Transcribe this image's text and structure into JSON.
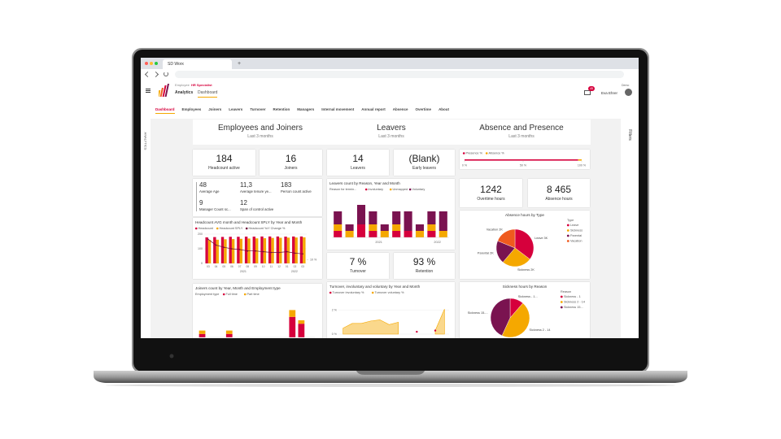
{
  "browser": {
    "tab_title": "SD Worx",
    "new_tab": "+"
  },
  "header": {
    "role_label": "Employee",
    "role": "HR Specialist",
    "nav": [
      "Analytics",
      "Dashboard"
    ],
    "notifications": "45",
    "environment": "Demo",
    "user": "Eva Ehrer"
  },
  "tabs": [
    "Dashboard",
    "Employees",
    "Joiners",
    "Leavers",
    "Turnover",
    "Retention",
    "Managers",
    "Internal movement",
    "Annual report",
    "Absence",
    "Overtime",
    "About"
  ],
  "sidebar": {
    "left": "ANALYTICS",
    "right": "Filters"
  },
  "sections": [
    {
      "title": "Employees and Joiners",
      "subtitle": "Last 3 months"
    },
    {
      "title": "Leavers",
      "subtitle": "Last 3 months"
    },
    {
      "title": "Absence and Presence",
      "subtitle": "Last 3 months"
    }
  ],
  "kpis": [
    {
      "value": "184",
      "label": "Headcount active"
    },
    {
      "value": "16",
      "label": "Joiners"
    },
    {
      "value": "14",
      "label": "Leavers"
    },
    {
      "value": "(Blank)",
      "label": "Early leavers"
    },
    {
      "value": "1242",
      "label": "Overtime hours"
    },
    {
      "value": "8 465",
      "label": "Absence hours"
    },
    {
      "value": "7 %",
      "label": "Turnover"
    },
    {
      "value": "93 %",
      "label": "Retention"
    }
  ],
  "stats": [
    {
      "value": "48",
      "label": "Average Age"
    },
    {
      "value": "11,3",
      "label": "Average tenure ye..."
    },
    {
      "value": "183",
      "label": "Person count active"
    },
    {
      "value": "9",
      "label": "Manager Count sc..."
    },
    {
      "value": "12",
      "label": "Span of control active"
    }
  ],
  "charts": {
    "presence": {
      "type": "stacked-hbar",
      "series": [
        {
          "name": "Presence %",
          "color": "#d6003c",
          "values": [
            97
          ]
        },
        {
          "name": "Absence %",
          "color": "#f5a800",
          "values": [
            3
          ]
        }
      ],
      "xlim": [
        0,
        100
      ],
      "xticks": [
        {
          "value": 0,
          "label": "0 %"
        },
        {
          "value": 50,
          "label": "50 %"
        },
        {
          "value": 100,
          "label": "100 %"
        }
      ]
    },
    "leavers": {
      "type": "stacked-bar",
      "title": "Leavers count by Reason, Year and Month",
      "legend_title": "Reason for termin...",
      "categories": [
        null,
        null,
        null,
        null,
        null,
        null,
        null,
        null,
        null,
        null
      ],
      "series": [
        {
          "name": "Involuntary",
          "color": "#d6003c",
          "values": [
            1,
            0,
            2,
            1,
            0,
            1,
            1,
            0,
            1,
            0
          ]
        },
        {
          "name": "Unmapped",
          "color": "#f5a800",
          "values": [
            1,
            1,
            0,
            1,
            1,
            1,
            0,
            1,
            1,
            1
          ]
        },
        {
          "name": "Voluntary",
          "color": "#7a1350",
          "values": [
            2,
            1,
            3,
            2,
            1,
            2,
            3,
            1,
            2,
            3
          ]
        }
      ],
      "ylim": [
        0,
        6
      ],
      "x_group_labels": [
        "2021",
        "2022"
      ]
    },
    "headcount": {
      "type": "bar-line",
      "title": "Headcount AVG month and Headcount SPLY by Year and Month",
      "categories": [
        "03",
        "04",
        "05",
        "06",
        "07",
        "08",
        "09",
        "10",
        "11",
        "12",
        "01",
        "02",
        "03"
      ],
      "series": [
        {
          "name": "Headcount",
          "color": "#d6003c",
          "values": [
            178,
            180,
            181,
            182,
            182,
            183,
            183,
            184,
            184,
            184,
            183,
            184,
            184
          ]
        },
        {
          "name": "Headcount SPLY",
          "color": "#f5a800",
          "values": [
            160,
            162,
            165,
            166,
            168,
            170,
            171,
            172,
            174,
            175,
            176,
            177,
            178
          ]
        },
        {
          "name": "Headcount YoY Change %",
          "color": "#6e0b3a",
          "axis": "y2",
          "values": [
            38,
            30,
            27,
            25,
            24,
            22,
            22,
            21,
            20,
            20,
            21,
            19,
            18
          ]
        }
      ],
      "ylim": [
        0,
        200
      ],
      "yticks": [
        0,
        100,
        200
      ],
      "y2lim": [
        5,
        45
      ],
      "y2ticks": [
        {
          "value": 10,
          "label": "10 %"
        }
      ],
      "x_group_labels": [
        "2021",
        "2022"
      ]
    },
    "joiners": {
      "type": "stacked-bar",
      "title": "Joiners count by Year, Month and Employment type",
      "legend_title": "Employment type",
      "categories": [
        null,
        null,
        null,
        null,
        null,
        null,
        null,
        null,
        null,
        null,
        null,
        null,
        null
      ],
      "series": [
        {
          "name": "Full time",
          "color": "#d6003c",
          "values": [
            1,
            0,
            0,
            1,
            0,
            0,
            0,
            0,
            0,
            0,
            6,
            4,
            0
          ]
        },
        {
          "name": "Part time",
          "color": "#f5a800",
          "values": [
            1,
            0,
            0,
            1,
            0,
            0,
            0,
            0,
            0,
            0,
            2,
            1,
            0
          ]
        }
      ],
      "ylim": [
        0,
        10
      ]
    },
    "turnover": {
      "type": "area",
      "title": "Turnover, involuntary and voluntary by Year and Month",
      "categories": [
        null,
        null,
        null,
        null,
        null,
        null,
        null,
        null,
        null,
        null,
        null,
        null
      ],
      "series": [
        {
          "name": "Turnover involuntary %",
          "color": "#d6003c",
          "values": [
            null,
            null,
            null,
            null,
            null,
            null,
            null,
            null,
            0.2,
            null,
            0.3,
            null
          ]
        },
        {
          "name": "Turnover voluntary %",
          "color": "#f5a800",
          "values": [
            0.5,
            0.9,
            0.9,
            1.1,
            1.2,
            0.8,
            1.0,
            null,
            null,
            null,
            0.3,
            2.1
          ]
        }
      ],
      "ylim": [
        0,
        3
      ],
      "yticks": [
        {
          "value": 2,
          "label": "2 %"
        },
        {
          "value": 0,
          "label": "0 %"
        }
      ]
    },
    "absence": {
      "type": "pie",
      "title": "Absence hours by Type",
      "legend_title": "Type",
      "slices": [
        {
          "name": "Leave",
          "value": 3000,
          "label": "Leave 3K",
          "color": "#d6003c"
        },
        {
          "name": "Sickness",
          "value": 2200,
          "label": "Sickness 2K",
          "color": "#f5a800"
        },
        {
          "name": "Parental",
          "value": 1700,
          "label": "Parental 2K",
          "color": "#7a1350"
        },
        {
          "name": "Vacation",
          "value": 1600,
          "label": "Vacation 2K",
          "color": "#ef5a1e"
        }
      ]
    },
    "sickness": {
      "type": "pie",
      "title": "Sickness hours by Reason",
      "legend_title": "Reason",
      "slices": [
        {
          "name": "Sickness - 1",
          "value": 250,
          "label": "Sickness - 1...",
          "color": "#d6003c"
        },
        {
          "name": "Sickness 2 - 14",
          "value": 1000,
          "label": "Sickness 2 - 14",
          "color": "#f5a800"
        },
        {
          "name": "Sickness 15...",
          "value": 950,
          "label": "Sickness 15-...",
          "color": "#7a1350"
        }
      ]
    }
  }
}
